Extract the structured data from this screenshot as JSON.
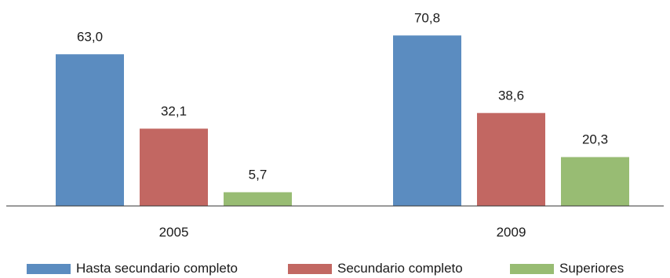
{
  "chart_data": {
    "type": "bar",
    "categories": [
      "2005",
      "2009"
    ],
    "series": [
      {
        "name": "Hasta secundario completo",
        "values": [
          63.0,
          70.8
        ],
        "labels": [
          "63,0",
          "70,8"
        ],
        "color": "#5b8cc0"
      },
      {
        "name": "Secundario completo",
        "values": [
          32.1,
          38.6
        ],
        "labels": [
          "32,1",
          "38,6"
        ],
        "color": "#c26762"
      },
      {
        "name": "Superiores",
        "values": [
          5.7,
          20.3
        ],
        "labels": [
          "5,7",
          "20,3"
        ],
        "color": "#98bc73"
      }
    ],
    "ylim": [
      0,
      80
    ],
    "grid": false,
    "legend_position": "bottom"
  }
}
